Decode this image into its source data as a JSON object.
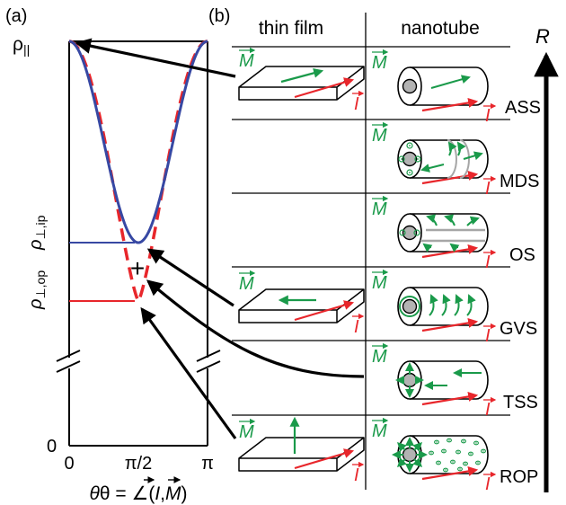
{
  "colors": {
    "magnetization": "#1a9a4a",
    "current": "#e8262b",
    "curve_solid": "#3748a3",
    "curve_dashed": "#e8262b",
    "axis": "#000000",
    "core": "#b3b3b3",
    "guide": "#a6a6a6"
  },
  "panel_a": {
    "label": "(a)",
    "y_ticks": {
      "rho_par": "ρ",
      "rho_par_sub": "||",
      "rho_perp_ip": "ρ",
      "rho_perp_ip_sub": "⊥,ip",
      "rho_perp_op": "ρ",
      "rho_perp_op_sub": "⊥,op",
      "zero": "0"
    },
    "x_ticks": [
      "0",
      "π/2",
      "π"
    ],
    "x_label_prefix": "θ = ∠(",
    "x_label_i": "I",
    "x_label_sep": ",",
    "x_label_m": "M",
    "x_label_suffix": ")",
    "cross_marker": "+"
  },
  "panel_b": {
    "label": "(b)",
    "col_thin_film": "thin film",
    "col_nanotube": "nanotube",
    "m_symbol": "M",
    "i_symbol": "I",
    "r_label": "R",
    "rows": [
      {
        "state": "ASS"
      },
      {
        "state": "MDS"
      },
      {
        "state": "OS"
      },
      {
        "state": "GVS"
      },
      {
        "state": "TSS"
      },
      {
        "state": "ROP"
      }
    ]
  }
}
